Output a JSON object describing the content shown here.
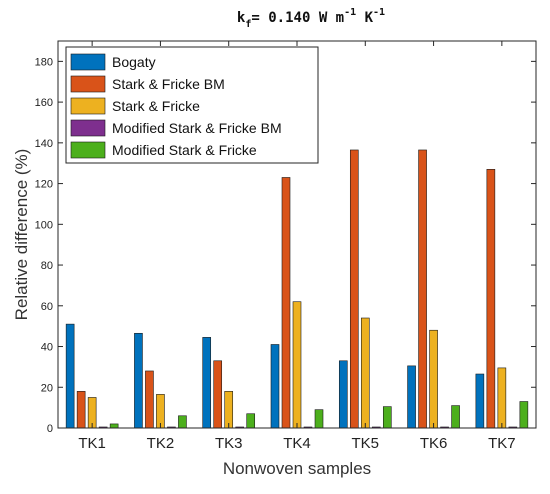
{
  "chart_data": {
    "type": "bar",
    "title": {
      "parts": [
        {
          "text": "k",
          "style": "normal"
        },
        {
          "text": "f",
          "style": "sub"
        },
        {
          "text": "= 0.140 W  m",
          "style": "normal"
        },
        {
          "text": "-1",
          "style": "sup"
        },
        {
          "text": " K",
          "style": "normal"
        },
        {
          "text": "-1",
          "style": "sup"
        }
      ]
    },
    "xlabel": "Nonwoven samples",
    "ylabel": "Relative difference (%)",
    "categories": [
      "TK1",
      "TK2",
      "TK3",
      "TK4",
      "TK5",
      "TK6",
      "TK7"
    ],
    "ylim": [
      0,
      190
    ],
    "yticks": [
      0,
      20,
      40,
      60,
      80,
      100,
      120,
      140,
      160,
      180
    ],
    "grid": false,
    "legend_position": "top-left",
    "series": [
      {
        "name": "Bogaty",
        "color": "#0072BD",
        "values": [
          51,
          46.5,
          44.5,
          41,
          33,
          30.5,
          26.5
        ]
      },
      {
        "name": "Stark & Fricke BM",
        "color": "#D95319",
        "values": [
          18,
          28,
          33,
          123,
          136.5,
          136.5,
          127
        ]
      },
      {
        "name": "Stark & Fricke",
        "color": "#EDB120",
        "values": [
          15,
          16.5,
          18,
          62,
          54,
          48,
          29.5
        ]
      },
      {
        "name": "Modified Stark & Fricke BM",
        "color": "#7E2F8E",
        "values": [
          0.5,
          0.5,
          0.5,
          0.5,
          0.5,
          0.5,
          0.5
        ]
      },
      {
        "name": "Modified Stark & Fricke",
        "color": "#4CAF1C",
        "values": [
          2,
          6,
          7,
          9,
          10.5,
          11,
          13
        ]
      }
    ]
  }
}
